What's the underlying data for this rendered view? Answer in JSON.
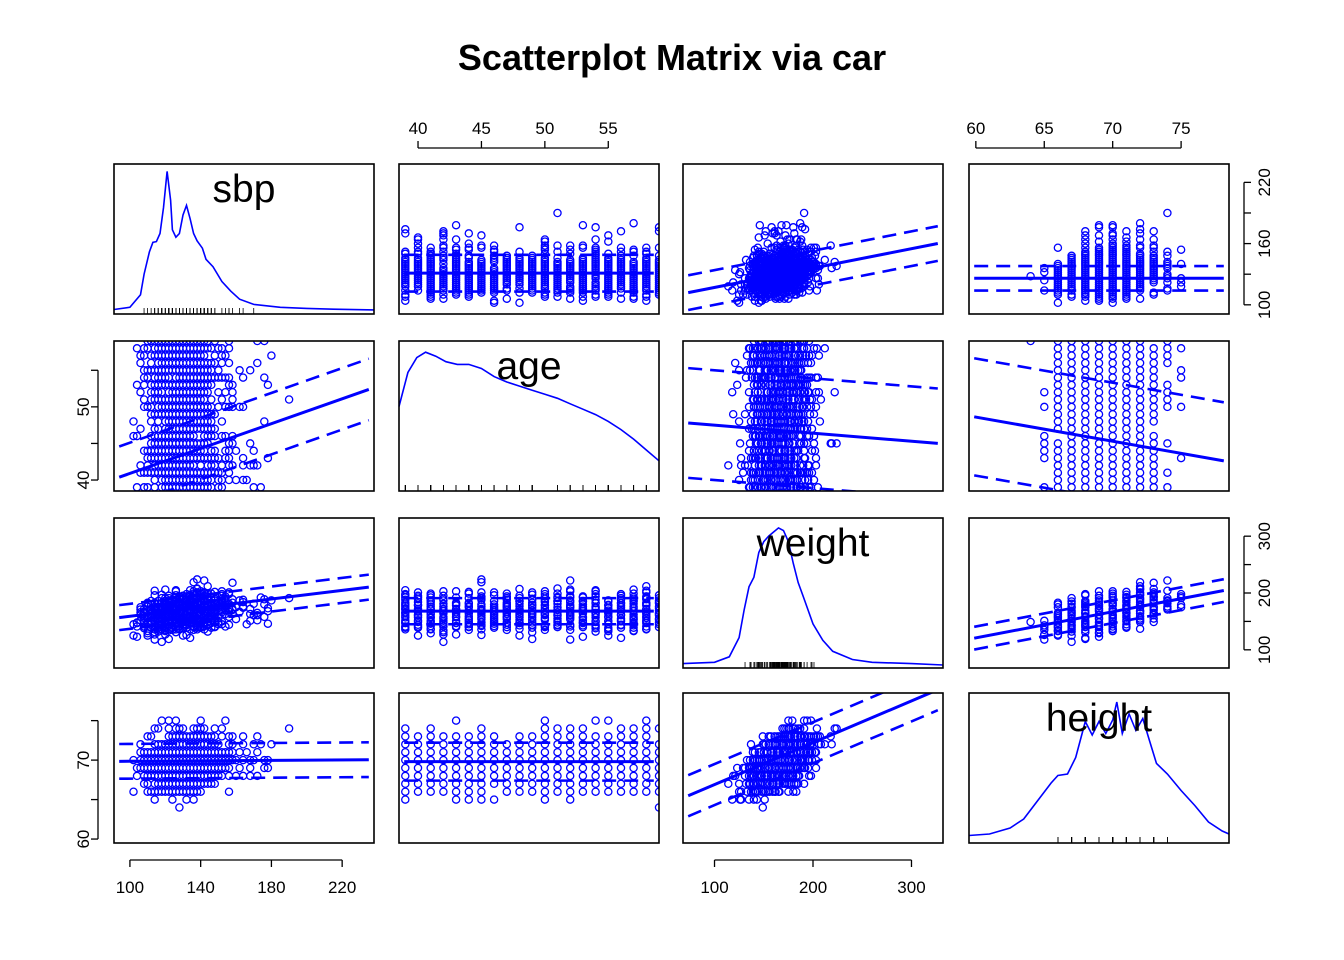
{
  "chart_data": {
    "type": "scatter",
    "title": "Scatterplot Matrix via car",
    "variables": [
      "sbp",
      "age",
      "weight",
      "height"
    ],
    "limits": {
      "sbp": [
        91,
        238
      ],
      "age": [
        38.5,
        59
      ],
      "weight": [
        68,
        332
      ],
      "height": [
        59.5,
        78.5
      ]
    },
    "ticks": {
      "sbp": {
        "side": [
          "bottom",
          "right"
        ],
        "values": [
          100,
          140,
          180,
          220
        ],
        "right_values": [
          100,
          130,
          160,
          190,
          220
        ],
        "right_labels": [
          "100",
          "",
          "160",
          "",
          "220"
        ],
        "labels": [
          "100",
          "140",
          "180",
          "220"
        ]
      },
      "age": {
        "side": [
          "top",
          "left"
        ],
        "values": [
          40,
          45,
          50,
          55
        ],
        "labels": [
          "40",
          "45",
          "50",
          "55"
        ],
        "left_values": [
          40,
          45,
          50,
          55
        ],
        "left_labels": [
          "40",
          "",
          "50",
          ""
        ]
      },
      "weight": {
        "side": [
          "bottom",
          "right"
        ],
        "values": [
          100,
          200,
          300
        ],
        "labels": [
          "100",
          "200",
          "300"
        ],
        "right_values": [
          100,
          150,
          200,
          250,
          300
        ],
        "right_labels": [
          "100",
          "",
          "200",
          "",
          "300"
        ]
      },
      "height": {
        "side": [
          "top",
          "left"
        ],
        "values": [
          60,
          65,
          70,
          75
        ],
        "labels": [
          "60",
          "65",
          "70",
          "75"
        ],
        "left_values": [
          60,
          65,
          70,
          75
        ],
        "left_labels": [
          "60",
          "",
          "70",
          ""
        ]
      }
    },
    "regressions": {
      "sbp|age": {
        "intercept": 131,
        "slope": 0,
        "spread": 18
      },
      "sbp|weight": {
        "intercept": 98,
        "slope": 0.19,
        "spread": 17
      },
      "sbp|height": {
        "intercept": 126,
        "slope": 0,
        "spread": 12
      },
      "age|sbp": {
        "intercept": 32.4,
        "slope": 0.085,
        "spread": 4.2
      },
      "age|weight": {
        "intercept": 48.6,
        "slope": -0.011,
        "spread": 7.5
      },
      "age|height": {
        "intercept": 68.4,
        "slope": -0.33,
        "spread": 8
      },
      "weight|sbp": {
        "intercept": 121,
        "slope": 0.38,
        "spread": 22
      },
      "weight|age": {
        "intercept": 168,
        "slope": 0,
        "spread": 23
      },
      "weight|height": {
        "intercept": -155,
        "slope": 4.6,
        "spread": 20
      },
      "height|sbp": {
        "intercept": 69.7,
        "slope": 0.0015,
        "spread": 2.2
      },
      "height|age": {
        "intercept": 69.8,
        "slope": 0,
        "spread": 2.4
      },
      "height|weight": {
        "intercept": 61.6,
        "slope": 0.053,
        "spread": 2.6
      }
    },
    "density_curves": {
      "sbp": [
        [
          91,
          0.2
        ],
        [
          100,
          0.5
        ],
        [
          106,
          2.2
        ],
        [
          108,
          5
        ],
        [
          111,
          8
        ],
        [
          113,
          9.3
        ],
        [
          115,
          9.4
        ],
        [
          117,
          10.5
        ],
        [
          119,
          14
        ],
        [
          121,
          18.9
        ],
        [
          123,
          15
        ],
        [
          124,
          11
        ],
        [
          126,
          10
        ],
        [
          128,
          10.5
        ],
        [
          130,
          13
        ],
        [
          132,
          14.3
        ],
        [
          134,
          12.5
        ],
        [
          136,
          10.5
        ],
        [
          138,
          9.5
        ],
        [
          141,
          8.5
        ],
        [
          143,
          7
        ],
        [
          147,
          6
        ],
        [
          152,
          4
        ],
        [
          157,
          2.7
        ],
        [
          162,
          1.6
        ],
        [
          170,
          0.9
        ],
        [
          185,
          0.5
        ],
        [
          200,
          0.35
        ],
        [
          215,
          0.25
        ],
        [
          238,
          0.15
        ]
      ],
      "age": [
        [
          38.5,
          6.0
        ],
        [
          39.2,
          8.5
        ],
        [
          39.9,
          9.6
        ],
        [
          40.6,
          10.0
        ],
        [
          41.4,
          9.7
        ],
        [
          42.2,
          9.3
        ],
        [
          43.1,
          9.1
        ],
        [
          44,
          9.1
        ],
        [
          45,
          8.8
        ],
        [
          46,
          8.2
        ],
        [
          47,
          7.8
        ],
        [
          48,
          7.5
        ],
        [
          49,
          7.2
        ],
        [
          50,
          6.9
        ],
        [
          51,
          6.6
        ],
        [
          52,
          6.2
        ],
        [
          53,
          5.8
        ],
        [
          54,
          5.4
        ],
        [
          55,
          4.9
        ],
        [
          56,
          4.3
        ],
        [
          57,
          3.6
        ],
        [
          58,
          2.8
        ],
        [
          59,
          2.0
        ]
      ],
      "weight": [
        [
          68,
          0.01
        ],
        [
          100,
          0.02
        ],
        [
          115,
          0.06
        ],
        [
          125,
          0.2
        ],
        [
          130,
          0.4
        ],
        [
          135,
          0.57
        ],
        [
          140,
          0.64
        ],
        [
          145,
          0.82
        ],
        [
          150,
          0.9
        ],
        [
          155,
          0.94
        ],
        [
          160,
          0.97
        ],
        [
          165,
          1.0
        ],
        [
          170,
          0.98
        ],
        [
          175,
          0.9
        ],
        [
          180,
          0.74
        ],
        [
          185,
          0.6
        ],
        [
          190,
          0.5
        ],
        [
          195,
          0.4
        ],
        [
          200,
          0.3
        ],
        [
          210,
          0.18
        ],
        [
          220,
          0.1
        ],
        [
          240,
          0.04
        ],
        [
          260,
          0.02
        ],
        [
          300,
          0.01
        ],
        [
          332,
          0.0
        ]
      ],
      "height": [
        [
          59.5,
          0.3
        ],
        [
          61,
          0.4
        ],
        [
          62.5,
          0.8
        ],
        [
          63.5,
          1.4
        ],
        [
          64.5,
          2.6
        ],
        [
          65.5,
          3.8
        ],
        [
          66,
          4.3
        ],
        [
          66.7,
          4.4
        ],
        [
          67.3,
          5.5
        ],
        [
          68,
          7.9
        ],
        [
          68.5,
          7.0
        ],
        [
          69,
          7.9
        ],
        [
          69.5,
          7.1
        ],
        [
          70,
          8.0
        ],
        [
          70.3,
          9.2
        ],
        [
          70.7,
          7.1
        ],
        [
          71.2,
          8.4
        ],
        [
          71.7,
          7.3
        ],
        [
          72.2,
          8.1
        ],
        [
          72.7,
          6.6
        ],
        [
          73.2,
          5.1
        ],
        [
          74,
          4.4
        ],
        [
          75,
          3.3
        ],
        [
          76,
          2.3
        ],
        [
          77,
          1.2
        ],
        [
          78,
          0.6
        ],
        [
          78.5,
          0.4
        ]
      ]
    },
    "density_ylim": {
      "sbp": [
        0,
        19.5
      ],
      "age": [
        0,
        10.6
      ],
      "weight": [
        0,
        1.05
      ],
      "height": [
        0,
        9.6
      ]
    },
    "series_color": "#0000ff",
    "grid": false
  }
}
